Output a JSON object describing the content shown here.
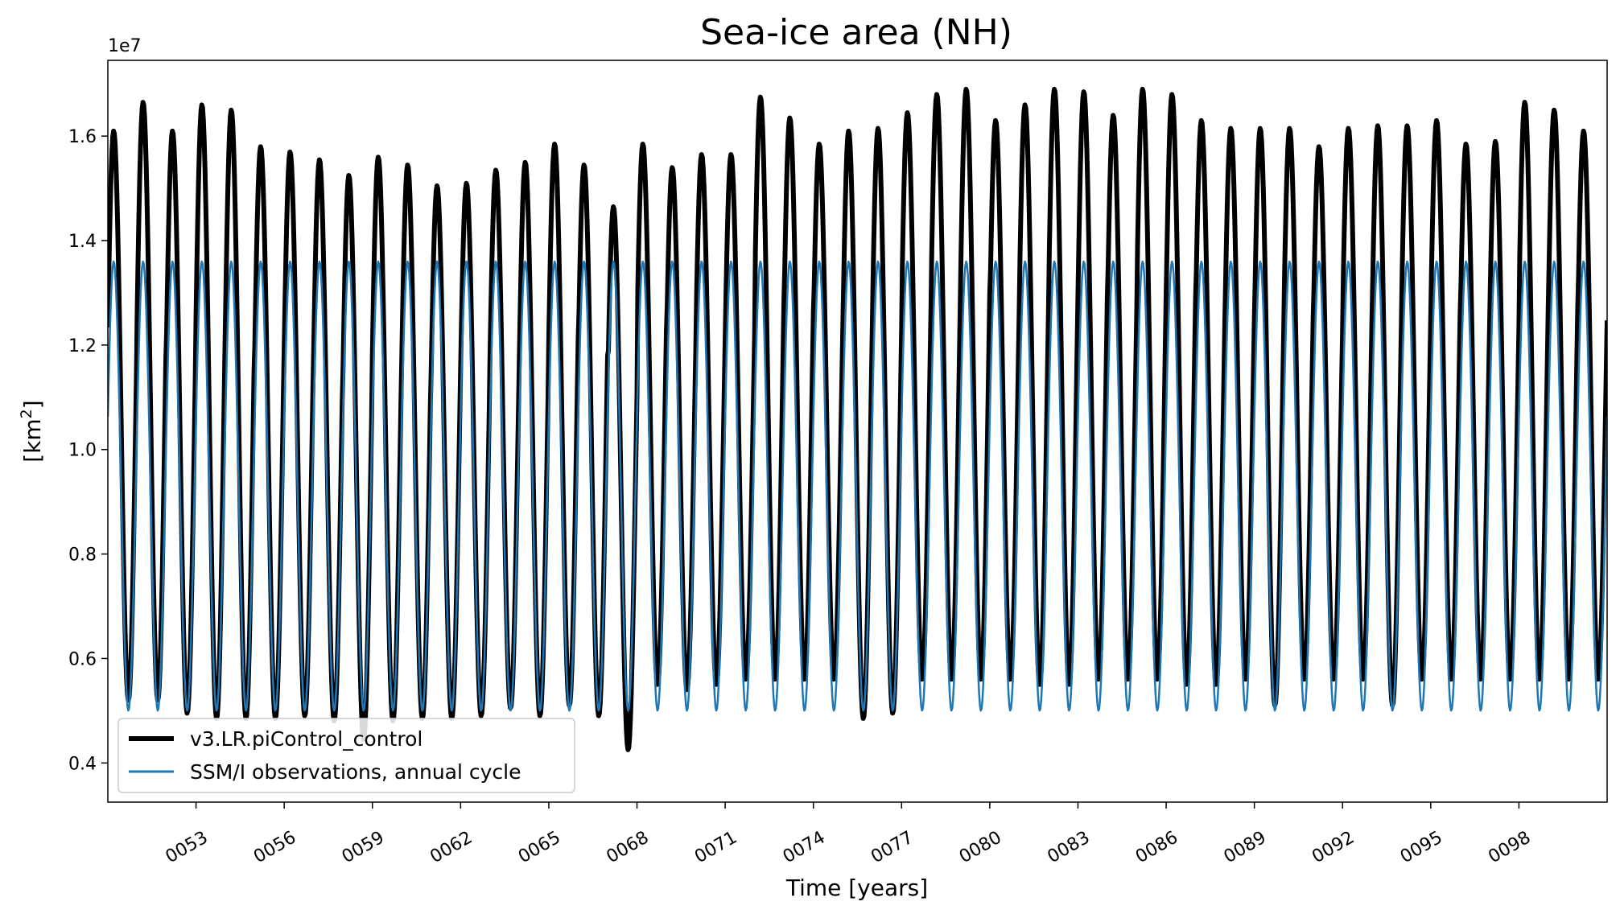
{
  "chart_data": {
    "type": "line",
    "title": "Sea-ice area (NH)",
    "xlabel": "Time [years]",
    "ylabel_main": "[km",
    "ylabel_sup": "2",
    "ylabel_end": "]",
    "y_offset_label": "1e7",
    "xlim": [
      50.0,
      101.0
    ],
    "ylim": [
      3.25,
      17.45
    ],
    "y_scale_multiplier": 10000000,
    "y_ticks": [
      4,
      6,
      8,
      10,
      12,
      14,
      16
    ],
    "y_tick_labels": [
      "0.4",
      "0.6",
      "0.8",
      "1.0",
      "1.2",
      "1.4",
      "1.6"
    ],
    "x_ticks": [
      53,
      56,
      59,
      62,
      65,
      68,
      71,
      74,
      77,
      80,
      83,
      86,
      89,
      92,
      95,
      98
    ],
    "x_tick_labels": [
      "0053",
      "0056",
      "0059",
      "0062",
      "0065",
      "0068",
      "0071",
      "0074",
      "0077",
      "0080",
      "0083",
      "0086",
      "0089",
      "0092",
      "0095",
      "0098"
    ],
    "x_tick_rotation": 30,
    "legend_position": "lower-left",
    "series": [
      {
        "name": "v3.LR.piControl_control",
        "color": "#000000",
        "style": "thick",
        "years_start": 50,
        "annual_max": [
          16.1,
          16.65,
          16.1,
          16.6,
          16.5,
          15.8,
          15.7,
          15.55,
          15.25,
          15.6,
          15.45,
          15.05,
          15.1,
          15.35,
          15.5,
          15.85,
          15.45,
          14.65,
          15.85,
          15.4,
          15.65,
          15.65,
          16.75,
          16.35,
          15.85,
          16.1,
          16.15,
          16.45,
          16.8,
          16.9,
          16.3,
          16.6,
          16.9,
          16.85,
          16.4,
          16.9,
          16.8,
          16.3,
          16.15,
          16.15,
          16.15,
          15.8,
          16.15,
          16.2,
          16.2,
          16.3,
          15.85,
          15.9,
          16.65,
          16.5,
          16.1
        ],
        "annual_min": [
          5.2,
          5.2,
          4.95,
          4.85,
          4.85,
          4.85,
          4.9,
          4.8,
          4.45,
          4.8,
          4.85,
          4.85,
          4.9,
          5.05,
          4.9,
          5.1,
          4.9,
          4.25,
          5.5,
          5.4,
          5.5,
          5.6,
          5.6,
          5.6,
          5.6,
          4.85,
          4.95,
          5.6,
          5.6,
          5.6,
          5.6,
          5.5,
          5.5,
          5.6,
          5.6,
          5.6,
          5.5,
          5.5,
          5.6,
          5.1,
          5.6,
          5.6,
          5.6,
          5.1,
          5.6,
          5.6,
          5.6,
          5.6,
          5.6,
          5.6,
          5.6
        ]
      },
      {
        "name": "SSM/I observations, annual cycle",
        "color": "#1f77b4",
        "style": "thin",
        "annual_max": 13.6,
        "annual_min": 5.0
      }
    ]
  }
}
